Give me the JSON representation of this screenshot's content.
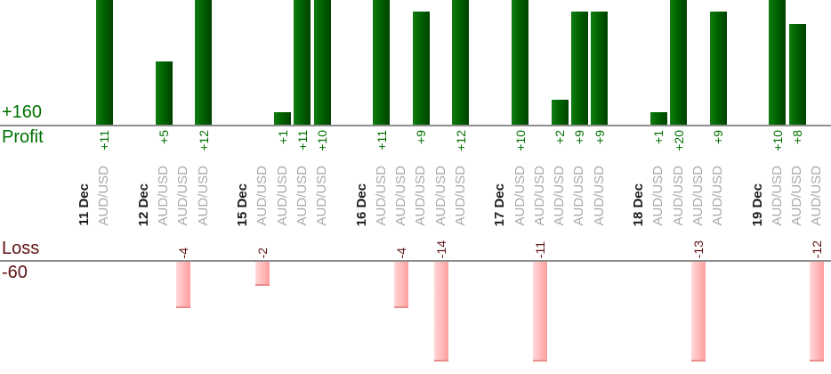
{
  "chart_data": {
    "type": "bar",
    "profit_axis": {
      "title": "Profit",
      "total": "+160"
    },
    "loss_axis": {
      "title": "Loss",
      "total": "-60"
    },
    "days": [
      {
        "date": "11 Dec",
        "trades": [
          {
            "instrument": "AUD/USD",
            "value": 11,
            "label": "+11"
          }
        ]
      },
      {
        "date": "12 Dec",
        "trades": [
          {
            "instrument": "AUD/USD",
            "value": 5,
            "label": "+5"
          },
          {
            "instrument": "AUD/USD",
            "value": -4,
            "label": "-4"
          },
          {
            "instrument": "AUD/USD",
            "value": 12,
            "label": "+12"
          }
        ]
      },
      {
        "date": "15 Dec",
        "trades": [
          {
            "instrument": "AUD/USD",
            "value": -2,
            "label": "-2"
          },
          {
            "instrument": "AUD/USD",
            "value": 1,
            "label": "+1"
          },
          {
            "instrument": "AUD/USD",
            "value": 11,
            "label": "+11"
          },
          {
            "instrument": "AUD/USD",
            "value": 10,
            "label": "+10"
          }
        ]
      },
      {
        "date": "16 Dec",
        "trades": [
          {
            "instrument": "AUD/USD",
            "value": 11,
            "label": "+11"
          },
          {
            "instrument": "AUD/USD",
            "value": -4,
            "label": "-4"
          },
          {
            "instrument": "AUD/USD",
            "value": 9,
            "label": "+9"
          },
          {
            "instrument": "AUD/USD",
            "value": -14,
            "label": "-14"
          },
          {
            "instrument": "AUD/USD",
            "value": 12,
            "label": "+12"
          }
        ]
      },
      {
        "date": "17 Dec",
        "trades": [
          {
            "instrument": "AUD/USD",
            "value": 10,
            "label": "+10"
          },
          {
            "instrument": "AUD/USD",
            "value": -11,
            "label": "-11"
          },
          {
            "instrument": "AUD/USD",
            "value": 2,
            "label": "+2"
          },
          {
            "instrument": "AUD/USD",
            "value": 9,
            "label": "+9"
          },
          {
            "instrument": "AUD/USD",
            "value": 9,
            "label": "+9"
          }
        ]
      },
      {
        "date": "18 Dec",
        "trades": [
          {
            "instrument": "AUD/USD",
            "value": 1,
            "label": "+1"
          },
          {
            "instrument": "AUD/USD",
            "value": 20,
            "label": "+20"
          },
          {
            "instrument": "AUD/USD",
            "value": -13,
            "label": "-13"
          },
          {
            "instrument": "AUD/USD",
            "value": 9,
            "label": "+9"
          }
        ]
      },
      {
        "date": "19 Dec",
        "trades": [
          {
            "instrument": "AUD/USD",
            "value": 10,
            "label": "+10"
          },
          {
            "instrument": "AUD/USD",
            "value": 8,
            "label": "+8"
          },
          {
            "instrument": "AUD/USD",
            "value": -12,
            "label": "-12"
          }
        ]
      }
    ],
    "colors": {
      "profit_bar": "#006300",
      "profit_text": "#007000",
      "loss_bar": "#FF9E9E",
      "loss_text": "#5E1212",
      "instrument_text": "#A9A9A9",
      "date_text": "#1C1C1C",
      "axis_line": "#8F8F8F"
    },
    "layout_hints": {
      "profit_bars_clip_at_top": true,
      "loss_bars_clamp_at_bottom": true,
      "label_orientation": "rotated-90-ccw"
    }
  }
}
